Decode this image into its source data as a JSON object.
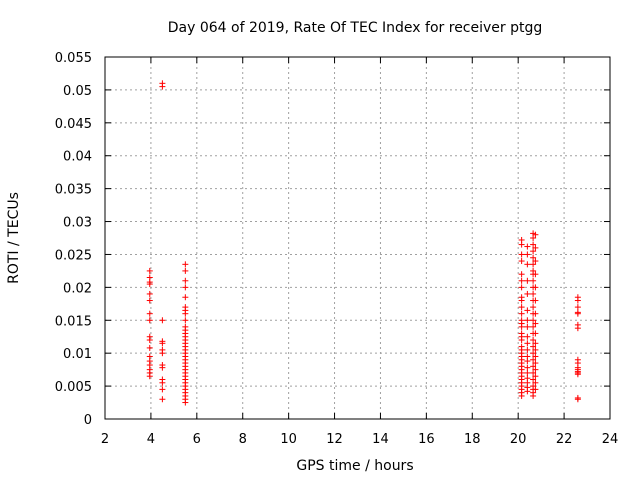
{
  "chart_data": {
    "type": "scatter",
    "title": "Day 064 of 2019, Rate Of TEC Index for receiver ptgg",
    "xlabel": "GPS time / hours",
    "ylabel": "ROTI / TECUs",
    "xlim": [
      2,
      24
    ],
    "ylim": [
      0,
      0.055
    ],
    "xticks": [
      2,
      4,
      6,
      8,
      10,
      12,
      14,
      16,
      18,
      20,
      22,
      24
    ],
    "yticks": [
      0,
      0.005,
      0.01,
      0.015,
      0.02,
      0.025,
      0.03,
      0.035,
      0.04,
      0.045,
      0.05,
      0.055
    ],
    "ytick_labels": [
      "0",
      "0.005",
      "0.01",
      "0.015",
      "0.02",
      "0.025",
      "0.03",
      "0.035",
      "0.04",
      "0.045",
      "0.05",
      "0.055"
    ],
    "grid": true,
    "marker_color": "#ff0000",
    "series": [
      {
        "name": "ROTI",
        "points": [
          [
            3.95,
            0.0225
          ],
          [
            3.95,
            0.0215
          ],
          [
            3.95,
            0.0208
          ],
          [
            3.95,
            0.0205
          ],
          [
            3.95,
            0.019
          ],
          [
            3.95,
            0.018
          ],
          [
            3.95,
            0.016
          ],
          [
            3.95,
            0.015
          ],
          [
            3.95,
            0.0125
          ],
          [
            3.95,
            0.012
          ],
          [
            3.95,
            0.0108
          ],
          [
            3.95,
            0.0095
          ],
          [
            3.95,
            0.0088
          ],
          [
            3.95,
            0.0082
          ],
          [
            3.95,
            0.0075
          ],
          [
            3.95,
            0.007
          ],
          [
            3.95,
            0.0065
          ],
          [
            4.5,
            0.051
          ],
          [
            4.5,
            0.0505
          ],
          [
            4.5,
            0.015
          ],
          [
            4.5,
            0.0118
          ],
          [
            4.5,
            0.0115
          ],
          [
            4.5,
            0.0105
          ],
          [
            4.5,
            0.01
          ],
          [
            4.5,
            0.0082
          ],
          [
            4.5,
            0.0078
          ],
          [
            4.5,
            0.006
          ],
          [
            4.5,
            0.0055
          ],
          [
            4.5,
            0.0045
          ],
          [
            4.5,
            0.003
          ],
          [
            5.5,
            0.0235
          ],
          [
            5.5,
            0.0225
          ],
          [
            5.5,
            0.021
          ],
          [
            5.5,
            0.02
          ],
          [
            5.5,
            0.0185
          ],
          [
            5.5,
            0.017
          ],
          [
            5.5,
            0.0165
          ],
          [
            5.5,
            0.016
          ],
          [
            5.5,
            0.015
          ],
          [
            5.5,
            0.014
          ],
          [
            5.5,
            0.0135
          ],
          [
            5.5,
            0.013
          ],
          [
            5.5,
            0.0125
          ],
          [
            5.5,
            0.012
          ],
          [
            5.5,
            0.0115
          ],
          [
            5.5,
            0.011
          ],
          [
            5.5,
            0.0105
          ],
          [
            5.5,
            0.01
          ],
          [
            5.5,
            0.0095
          ],
          [
            5.5,
            0.009
          ],
          [
            5.5,
            0.0085
          ],
          [
            5.5,
            0.008
          ],
          [
            5.5,
            0.0075
          ],
          [
            5.5,
            0.007
          ],
          [
            5.5,
            0.0065
          ],
          [
            5.5,
            0.006
          ],
          [
            5.5,
            0.0055
          ],
          [
            5.5,
            0.005
          ],
          [
            5.5,
            0.0045
          ],
          [
            5.5,
            0.004
          ],
          [
            5.5,
            0.0035
          ],
          [
            5.5,
            0.003
          ],
          [
            5.5,
            0.0025
          ],
          [
            20.15,
            0.0272
          ],
          [
            20.15,
            0.0265
          ],
          [
            20.15,
            0.025
          ],
          [
            20.15,
            0.024
          ],
          [
            20.15,
            0.022
          ],
          [
            20.15,
            0.021
          ],
          [
            20.15,
            0.02
          ],
          [
            20.15,
            0.0185
          ],
          [
            20.15,
            0.018
          ],
          [
            20.15,
            0.017
          ],
          [
            20.15,
            0.016
          ],
          [
            20.15,
            0.015
          ],
          [
            20.15,
            0.0145
          ],
          [
            20.15,
            0.014
          ],
          [
            20.15,
            0.013
          ],
          [
            20.15,
            0.0125
          ],
          [
            20.15,
            0.012
          ],
          [
            20.15,
            0.011
          ],
          [
            20.15,
            0.0105
          ],
          [
            20.15,
            0.01
          ],
          [
            20.15,
            0.0095
          ],
          [
            20.15,
            0.009
          ],
          [
            20.15,
            0.0085
          ],
          [
            20.15,
            0.008
          ],
          [
            20.15,
            0.0075
          ],
          [
            20.15,
            0.007
          ],
          [
            20.15,
            0.0065
          ],
          [
            20.15,
            0.006
          ],
          [
            20.15,
            0.0055
          ],
          [
            20.15,
            0.005
          ],
          [
            20.15,
            0.0045
          ],
          [
            20.15,
            0.004
          ],
          [
            20.15,
            0.0035
          ],
          [
            20.4,
            0.0262
          ],
          [
            20.4,
            0.025
          ],
          [
            20.4,
            0.0235
          ],
          [
            20.4,
            0.021
          ],
          [
            20.4,
            0.019
          ],
          [
            20.4,
            0.0165
          ],
          [
            20.4,
            0.015
          ],
          [
            20.4,
            0.014
          ],
          [
            20.4,
            0.0125
          ],
          [
            20.4,
            0.0115
          ],
          [
            20.4,
            0.0105
          ],
          [
            20.4,
            0.0095
          ],
          [
            20.4,
            0.0088
          ],
          [
            20.4,
            0.0078
          ],
          [
            20.4,
            0.007
          ],
          [
            20.4,
            0.0062
          ],
          [
            20.4,
            0.0055
          ],
          [
            20.4,
            0.0048
          ],
          [
            20.4,
            0.0042
          ],
          [
            20.65,
            0.0282
          ],
          [
            20.65,
            0.0275
          ],
          [
            20.65,
            0.0265
          ],
          [
            20.65,
            0.0255
          ],
          [
            20.65,
            0.0245
          ],
          [
            20.65,
            0.0235
          ],
          [
            20.65,
            0.0225
          ],
          [
            20.65,
            0.022
          ],
          [
            20.65,
            0.021
          ],
          [
            20.65,
            0.02
          ],
          [
            20.65,
            0.019
          ],
          [
            20.65,
            0.018
          ],
          [
            20.65,
            0.017
          ],
          [
            20.65,
            0.016
          ],
          [
            20.65,
            0.015
          ],
          [
            20.65,
            0.014
          ],
          [
            20.65,
            0.013
          ],
          [
            20.65,
            0.012
          ],
          [
            20.65,
            0.011
          ],
          [
            20.65,
            0.01
          ],
          [
            20.65,
            0.009
          ],
          [
            20.65,
            0.008
          ],
          [
            20.65,
            0.007
          ],
          [
            20.65,
            0.006
          ],
          [
            20.65,
            0.005
          ],
          [
            20.65,
            0.0045
          ],
          [
            20.65,
            0.004
          ],
          [
            20.65,
            0.0035
          ],
          [
            20.75,
            0.028
          ],
          [
            20.75,
            0.026
          ],
          [
            20.75,
            0.024
          ],
          [
            20.75,
            0.022
          ],
          [
            20.75,
            0.02
          ],
          [
            20.75,
            0.018
          ],
          [
            20.75,
            0.016
          ],
          [
            20.75,
            0.0145
          ],
          [
            20.75,
            0.013
          ],
          [
            20.75,
            0.0115
          ],
          [
            20.75,
            0.0105
          ],
          [
            20.75,
            0.0095
          ],
          [
            20.75,
            0.0085
          ],
          [
            20.75,
            0.0075
          ],
          [
            20.75,
            0.0065
          ],
          [
            20.75,
            0.0055
          ],
          [
            20.75,
            0.0045
          ],
          [
            22.6,
            0.0185
          ],
          [
            22.6,
            0.018
          ],
          [
            22.6,
            0.017
          ],
          [
            22.6,
            0.0162
          ],
          [
            22.6,
            0.016
          ],
          [
            22.6,
            0.0143
          ],
          [
            22.6,
            0.0138
          ],
          [
            22.6,
            0.009
          ],
          [
            22.6,
            0.0085
          ],
          [
            22.6,
            0.0078
          ],
          [
            22.6,
            0.0075
          ],
          [
            22.6,
            0.0072
          ],
          [
            22.6,
            0.007
          ],
          [
            22.6,
            0.0068
          ],
          [
            22.6,
            0.0032
          ],
          [
            22.6,
            0.003
          ]
        ]
      }
    ]
  }
}
